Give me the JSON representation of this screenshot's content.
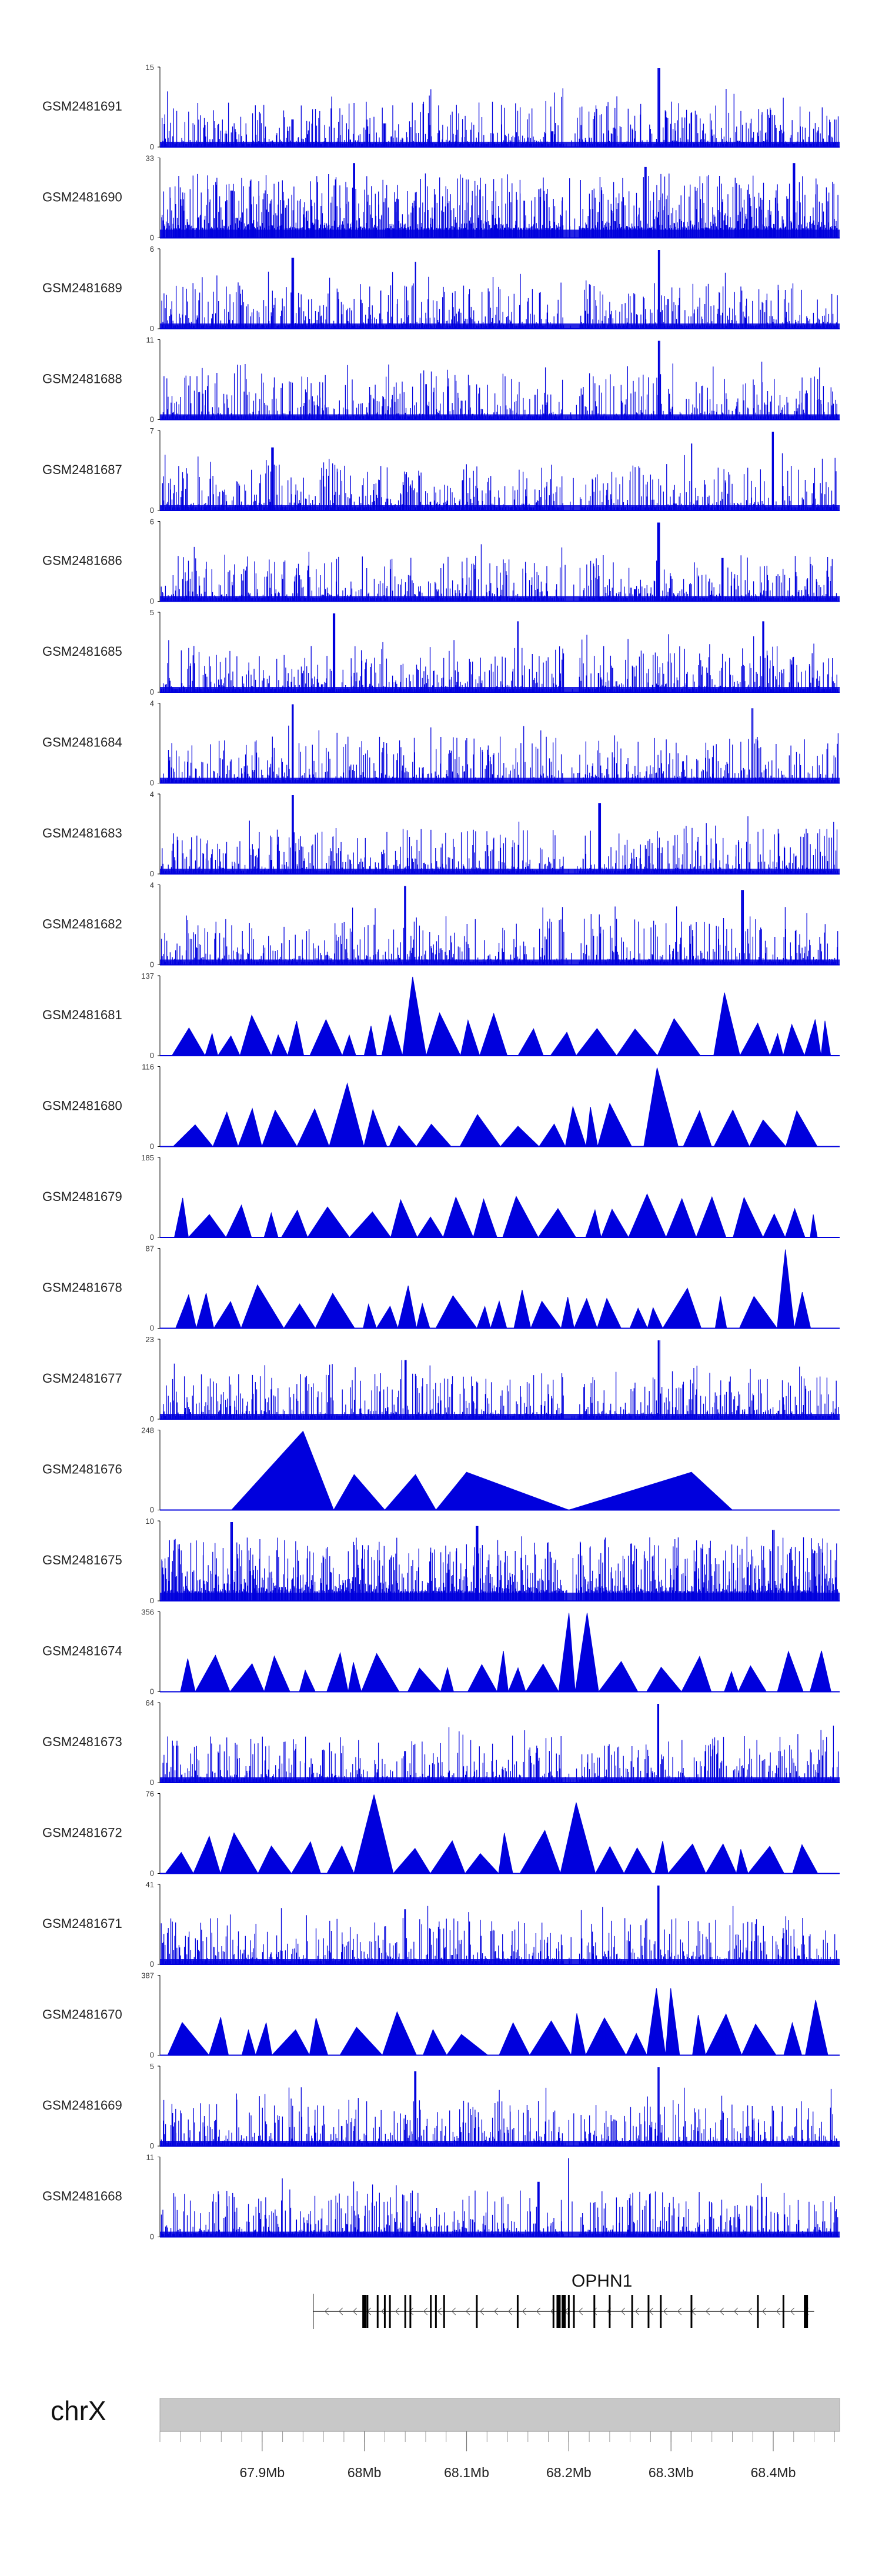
{
  "chart_data": {
    "type": "area",
    "title": "",
    "colors": {
      "signal": "#0000dd",
      "axis": "#000000",
      "chromosome": "#c8c8c8",
      "gene": "#000000"
    },
    "x_range_mb": [
      67.8,
      68.465
    ],
    "tracks": [
      {
        "name": "GSM2481691",
        "ymax": 15,
        "ymin": 0,
        "style": "spiky",
        "peaks": [
          [
            68.184,
            0.2
          ],
          [
            68.288,
            1.0
          ],
          [
            67.93,
            0.35
          ],
          [
            68.02,
            0.3
          ]
        ]
      },
      {
        "name": "GSM2481690",
        "ymax": 33,
        "ymin": 0,
        "style": "dense",
        "peaks": [
          [
            67.99,
            0.95
          ],
          [
            68.275,
            0.9
          ],
          [
            68.42,
            0.95
          ],
          [
            67.87,
            0.6
          ]
        ]
      },
      {
        "name": "GSM2481689",
        "ymax": 6,
        "ymin": 0,
        "style": "spiky",
        "peaks": [
          [
            68.288,
            1.0
          ],
          [
            67.93,
            0.9
          ],
          [
            68.05,
            0.85
          ]
        ]
      },
      {
        "name": "GSM2481688",
        "ymax": 11,
        "ymin": 0,
        "style": "spiky",
        "peaks": [
          [
            68.288,
            1.0
          ],
          [
            68.06,
            0.45
          ]
        ]
      },
      {
        "name": "GSM2481687",
        "ymax": 7,
        "ymin": 0,
        "style": "spiky",
        "peaks": [
          [
            68.4,
            1.0
          ],
          [
            68.32,
            0.85
          ],
          [
            67.91,
            0.8
          ]
        ]
      },
      {
        "name": "GSM2481686",
        "ymax": 6,
        "ymin": 0,
        "style": "spiky",
        "peaks": [
          [
            68.288,
            1.0
          ],
          [
            68.35,
            0.55
          ]
        ]
      },
      {
        "name": "GSM2481685",
        "ymax": 5,
        "ymin": 0,
        "style": "spiky",
        "peaks": [
          [
            67.97,
            1.0
          ],
          [
            68.15,
            0.9
          ],
          [
            68.39,
            0.9
          ]
        ]
      },
      {
        "name": "GSM2481684",
        "ymax": 4,
        "ymin": 0,
        "style": "spiky",
        "peaks": [
          [
            67.93,
            1.0
          ],
          [
            68.38,
            0.95
          ]
        ]
      },
      {
        "name": "GSM2481683",
        "ymax": 4,
        "ymin": 0,
        "style": "spiky",
        "peaks": [
          [
            67.93,
            1.0
          ],
          [
            68.23,
            0.9
          ]
        ]
      },
      {
        "name": "GSM2481682",
        "ymax": 4,
        "ymin": 0,
        "style": "spiky",
        "peaks": [
          [
            68.04,
            1.0
          ],
          [
            68.37,
            0.95
          ]
        ]
      },
      {
        "name": "GSM2481681",
        "ymax": 137,
        "ymin": 0,
        "style": "triangles",
        "peaks": [
          [
            68.04,
            1.0
          ],
          [
            68.35,
            0.8
          ]
        ]
      },
      {
        "name": "GSM2481680",
        "ymax": 116,
        "ymin": 0,
        "style": "triangles",
        "peaks": [
          [
            68.275,
            1.0
          ],
          [
            68.26,
            0.62
          ],
          [
            67.99,
            0.8
          ]
        ]
      },
      {
        "name": "GSM2481679",
        "ymax": 185,
        "ymin": 0,
        "style": "triangles",
        "peaks": [
          [
            68.288,
            1.0
          ],
          [
            68.27,
            0.55
          ],
          [
            68.17,
            0.4
          ]
        ]
      },
      {
        "name": "GSM2481678",
        "ymax": 87,
        "ymin": 0,
        "style": "triangles",
        "peaks": [
          [
            68.41,
            1.0
          ],
          [
            67.89,
            0.55
          ]
        ]
      },
      {
        "name": "GSM2481677",
        "ymax": 23,
        "ymin": 0,
        "style": "spiky",
        "peaks": [
          [
            68.04,
            0.75
          ],
          [
            68.288,
            1.0
          ]
        ]
      },
      {
        "name": "GSM2481676",
        "ymax": 248,
        "ymin": 0,
        "style": "wide",
        "peaks": [
          [
            67.94,
            1.0
          ]
        ]
      },
      {
        "name": "GSM2481675",
        "ymax": 10,
        "ymin": 0,
        "style": "dense",
        "peaks": [
          [
            67.87,
            1.0
          ],
          [
            68.11,
            0.95
          ],
          [
            68.4,
            0.9
          ]
        ]
      },
      {
        "name": "GSM2481674",
        "ymax": 356,
        "ymin": 0,
        "style": "triangles",
        "peaks": [
          [
            68.208,
            1.0
          ],
          [
            68.04,
            0.45
          ]
        ]
      },
      {
        "name": "GSM2481673",
        "ymax": 64,
        "ymin": 0,
        "style": "spiky",
        "peaks": [
          [
            68.288,
            1.0
          ],
          [
            68.04,
            0.4
          ]
        ]
      },
      {
        "name": "GSM2481672",
        "ymax": 76,
        "ymin": 0,
        "style": "triangles",
        "peaks": [
          [
            68.02,
            1.0
          ],
          [
            68.2,
            0.9
          ]
        ]
      },
      {
        "name": "GSM2481671",
        "ymax": 41,
        "ymin": 0,
        "style": "spiky",
        "peaks": [
          [
            68.288,
            1.0
          ],
          [
            68.04,
            0.7
          ]
        ]
      },
      {
        "name": "GSM2481670",
        "ymax": 387,
        "ymin": 0,
        "style": "triangles",
        "peaks": [
          [
            68.288,
            0.85
          ],
          [
            68.437,
            0.7
          ]
        ]
      },
      {
        "name": "GSM2481669",
        "ymax": 5,
        "ymin": 0,
        "style": "spiky",
        "peaks": [
          [
            68.288,
            1.0
          ],
          [
            68.05,
            0.95
          ]
        ]
      },
      {
        "name": "GSM2481668",
        "ymax": 11,
        "ymin": 0,
        "style": "spiky",
        "peaks": [
          [
            68.2,
            1.0
          ],
          [
            68.17,
            0.7
          ]
        ]
      }
    ],
    "gene": {
      "name": "OPHN1",
      "start_mb": 67.95,
      "end_mb": 68.44,
      "strand": "-",
      "exons_mb": [
        68.0,
        68.003,
        68.013,
        68.02,
        68.025,
        68.04,
        68.045,
        68.065,
        68.07,
        68.078,
        68.11,
        68.15,
        68.185,
        68.19,
        68.195,
        68.2,
        68.205,
        68.225,
        68.24,
        68.262,
        68.278,
        68.29,
        68.32,
        68.385,
        68.41,
        68.432
      ]
    },
    "chromosome": {
      "label": "chrX",
      "ticks_mb": [
        67.9,
        68.0,
        68.1,
        68.2,
        68.3,
        68.4
      ],
      "tick_labels": [
        "67.9Mb",
        "68Mb",
        "68.1Mb",
        "68.2Mb",
        "68.3Mb",
        "68.4Mb"
      ]
    }
  }
}
